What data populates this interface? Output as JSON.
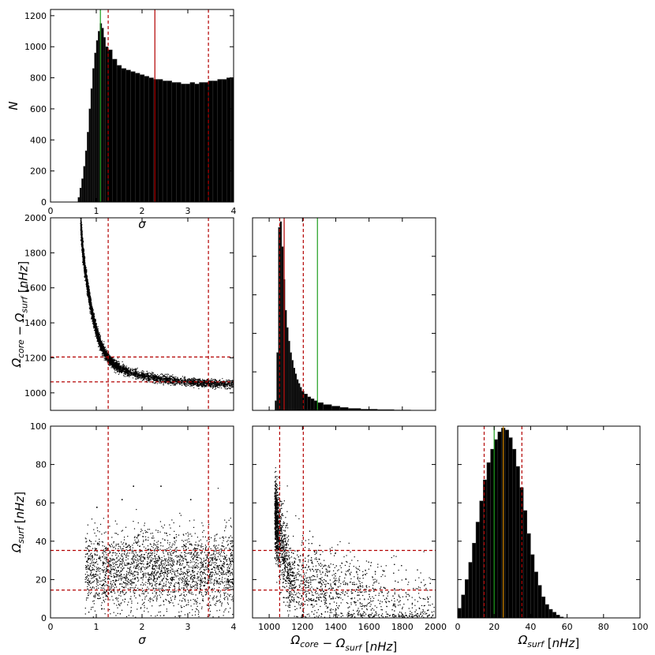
{
  "colors": {
    "red": "#b30000",
    "green": "#1e9e1e",
    "orange": "#d98c00",
    "marks": "#000000"
  },
  "chart_data": [
    {
      "type": "bar",
      "panel": "sigma-histogram",
      "xlabel": "σ",
      "ylabel": "N",
      "xlim": [
        0,
        4
      ],
      "ylim": [
        0,
        1240
      ],
      "xticks": [
        "0",
        "1",
        "2",
        "3",
        "4"
      ],
      "yticks": [
        "0",
        "200",
        "400",
        "600",
        "800",
        "1000",
        "1200"
      ],
      "x": [
        0.62,
        0.66,
        0.7,
        0.74,
        0.78,
        0.82,
        0.86,
        0.9,
        0.94,
        0.98,
        1.02,
        1.06,
        1.1,
        1.14,
        1.18,
        1.22,
        1.3,
        1.4,
        1.5,
        1.6,
        1.7,
        1.8,
        1.9,
        2.0,
        2.1,
        2.2,
        2.3,
        2.4,
        2.5,
        2.6,
        2.7,
        2.8,
        2.9,
        3.0,
        3.1,
        3.2,
        3.3,
        3.4,
        3.5,
        3.6,
        3.7,
        3.8,
        3.9,
        3.98
      ],
      "values": [
        30,
        90,
        150,
        230,
        330,
        450,
        600,
        730,
        860,
        960,
        1040,
        1100,
        1150,
        1120,
        1060,
        1000,
        980,
        920,
        880,
        860,
        850,
        840,
        830,
        820,
        810,
        800,
        790,
        790,
        780,
        780,
        770,
        770,
        760,
        760,
        770,
        760,
        770,
        770,
        780,
        780,
        790,
        790,
        800,
        800
      ],
      "vlines": [
        {
          "x": 1.09,
          "color": "green",
          "style": "solid"
        },
        {
          "x": 1.26,
          "color": "red",
          "style": "dashed"
        },
        {
          "x": 2.28,
          "color": "red",
          "style": "solid"
        },
        {
          "x": 3.45,
          "color": "red",
          "style": "dashed"
        }
      ]
    },
    {
      "type": "scatter",
      "panel": "sigma-vs-omega-diff",
      "xlabel": "",
      "ylabel": "Ω_core − Ω_surf [nHz]",
      "xlim": [
        0,
        4
      ],
      "ylim": [
        900,
        2000
      ],
      "xticks": [],
      "yticks": [
        "1000",
        "1200",
        "1400",
        "1600",
        "1800",
        "2000"
      ],
      "points": [
        [
          0.65,
          1980
        ],
        [
          0.68,
          1870
        ],
        [
          0.7,
          1800
        ],
        [
          0.75,
          1700
        ],
        [
          0.8,
          1610
        ],
        [
          0.85,
          1530
        ],
        [
          0.9,
          1460
        ],
        [
          0.95,
          1400
        ],
        [
          1.0,
          1350
        ],
        [
          1.05,
          1310
        ],
        [
          1.1,
          1270
        ],
        [
          1.2,
          1220
        ],
        [
          1.3,
          1185
        ],
        [
          1.4,
          1160
        ],
        [
          1.5,
          1145
        ],
        [
          1.7,
          1120
        ],
        [
          2.0,
          1100
        ],
        [
          2.3,
          1085
        ],
        [
          2.6,
          1075
        ],
        [
          3.0,
          1065
        ],
        [
          3.3,
          1058
        ],
        [
          3.6,
          1055
        ],
        [
          4.0,
          1050
        ]
      ],
      "vlines": [
        {
          "x": 1.26,
          "color": "red",
          "style": "dashed"
        },
        {
          "x": 3.45,
          "color": "red",
          "style": "dashed"
        }
      ],
      "hlines": [
        {
          "y": 1063,
          "color": "red",
          "style": "dashed"
        },
        {
          "y": 1205,
          "color": "red",
          "style": "dashed"
        }
      ]
    },
    {
      "type": "bar",
      "panel": "omega-diff-histogram",
      "xlabel": "",
      "ylabel": "",
      "xlim": [
        900,
        2000
      ],
      "ylim": [
        0,
        1
      ],
      "xticks": [],
      "yticks": [],
      "x": [
        1040,
        1050,
        1060,
        1070,
        1080,
        1090,
        1100,
        1110,
        1120,
        1130,
        1140,
        1150,
        1160,
        1170,
        1180,
        1190,
        1200,
        1220,
        1240,
        1260,
        1280,
        1300,
        1350,
        1400,
        1450,
        1500,
        1600,
        1700,
        1800
      ],
      "values": [
        0.05,
        0.3,
        0.95,
        0.98,
        0.85,
        0.68,
        0.52,
        0.43,
        0.36,
        0.3,
        0.26,
        0.22,
        0.19,
        0.16,
        0.14,
        0.12,
        0.1,
        0.085,
        0.07,
        0.06,
        0.05,
        0.04,
        0.03,
        0.022,
        0.015,
        0.01,
        0.006,
        0.004,
        0.002
      ],
      "vlines": [
        {
          "x": 1063,
          "color": "red",
          "style": "dashed"
        },
        {
          "x": 1090,
          "color": "red",
          "style": "solid"
        },
        {
          "x": 1205,
          "color": "red",
          "style": "dashed"
        },
        {
          "x": 1290,
          "color": "green",
          "style": "solid"
        }
      ]
    },
    {
      "type": "scatter",
      "panel": "sigma-vs-omega-surf",
      "xlabel": "σ",
      "ylabel": "Ω_surf [nHz]",
      "xlim": [
        0,
        4
      ],
      "ylim": [
        0,
        100
      ],
      "xticks": [
        "0",
        "1",
        "2",
        "3",
        "4"
      ],
      "yticks": [
        "0",
        "20",
        "40",
        "60",
        "80",
        "100"
      ],
      "cloud": {
        "x_range": [
          0.75,
          4.0
        ],
        "y_center": 25,
        "y_spread": 10
      },
      "outliers": [
        [
          1.8,
          69
        ],
        [
          2.4,
          69
        ],
        [
          1.55,
          62
        ],
        [
          3.05,
          62
        ],
        [
          1.0,
          58
        ]
      ],
      "vlines": [
        {
          "x": 1.26,
          "color": "red",
          "style": "dashed"
        },
        {
          "x": 3.45,
          "color": "red",
          "style": "dashed"
        }
      ],
      "hlines": [
        {
          "y": 14.5,
          "color": "red",
          "style": "dashed"
        },
        {
          "y": 35.2,
          "color": "red",
          "style": "dashed"
        }
      ]
    },
    {
      "type": "scatter",
      "panel": "omega-diff-vs-omega-surf",
      "xlabel": "Ω_core − Ω_surf [nHz]",
      "ylabel": "",
      "xlim": [
        900,
        2000
      ],
      "ylim": [
        0,
        100
      ],
      "xticks": [
        "1000",
        "1200",
        "1400",
        "1600",
        "1800",
        "2000"
      ],
      "yticks": [],
      "cloud": {
        "x_range": [
          1030,
          1980
        ],
        "y_center": 22,
        "y_spread": 10
      },
      "vlines": [
        {
          "x": 1063,
          "color": "red",
          "style": "dashed"
        },
        {
          "x": 1205,
          "color": "red",
          "style": "dashed"
        }
      ],
      "hlines": [
        {
          "y": 14.5,
          "color": "red",
          "style": "dashed"
        },
        {
          "y": 35.2,
          "color": "red",
          "style": "dashed"
        }
      ]
    },
    {
      "type": "bar",
      "panel": "omega-surf-histogram",
      "xlabel": "Ω_surf [nHz]",
      "ylabel": "",
      "xlim": [
        0,
        100
      ],
      "ylim": [
        0,
        1
      ],
      "xticks": [
        "0",
        "20",
        "40",
        "60",
        "80",
        "100"
      ],
      "yticks": [],
      "x": [
        1,
        3,
        5,
        7,
        9,
        11,
        13,
        15,
        17,
        19,
        21,
        23,
        25,
        27,
        29,
        31,
        33,
        35,
        37,
        39,
        41,
        43,
        45,
        47,
        49,
        51,
        53,
        55,
        57
      ],
      "values": [
        0.05,
        0.12,
        0.2,
        0.29,
        0.39,
        0.5,
        0.61,
        0.72,
        0.81,
        0.88,
        0.93,
        0.97,
        0.99,
        0.98,
        0.94,
        0.88,
        0.79,
        0.68,
        0.56,
        0.44,
        0.33,
        0.24,
        0.17,
        0.11,
        0.07,
        0.045,
        0.03,
        0.015,
        0.005
      ],
      "vlines": [
        {
          "x": 14.5,
          "color": "red",
          "style": "dashed"
        },
        {
          "x": 20,
          "color": "green",
          "style": "solid"
        },
        {
          "x": 25,
          "color": "orange",
          "style": "solid"
        },
        {
          "x": 35.2,
          "color": "red",
          "style": "dashed"
        }
      ]
    }
  ]
}
